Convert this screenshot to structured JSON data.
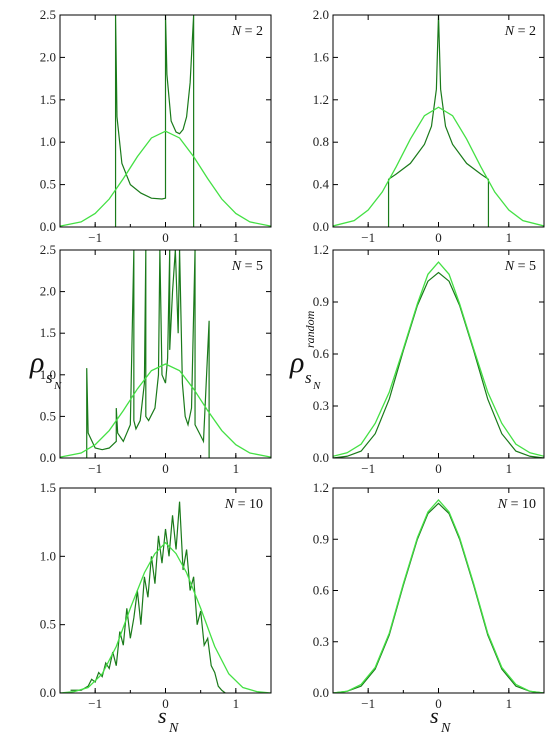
{
  "chart_data": [
    {
      "type": "line",
      "panel": "top-left",
      "annotation": "N = 2",
      "xlim": [
        -1.5,
        1.5
      ],
      "ylim": [
        0,
        2.5
      ],
      "xticks": [
        -1,
        0,
        1
      ],
      "yticks": [
        0.0,
        0.5,
        1.0,
        1.5,
        2.0,
        2.5
      ],
      "ytick_labels": [
        "0.0",
        "0.5",
        "1.0",
        "1.5",
        "2.0",
        "2.5"
      ],
      "series": [
        {
          "color": "#1a7a1a",
          "x": [
            -0.71,
            -0.71,
            -0.69,
            -0.62,
            -0.5,
            -0.35,
            -0.2,
            -0.05,
            0.0,
            0.0,
            0.02,
            0.08,
            0.15,
            0.2,
            0.25,
            0.3,
            0.35,
            0.4,
            0.4,
            0.4
          ],
          "y": [
            0.0,
            2.5,
            1.3,
            0.75,
            0.5,
            0.4,
            0.34,
            0.33,
            0.34,
            2.5,
            1.8,
            1.25,
            1.12,
            1.1,
            1.15,
            1.3,
            1.7,
            2.5,
            0.0,
            0.0
          ]
        },
        {
          "color": "#44e044",
          "x": [
            -1.5,
            -1.2,
            -1.0,
            -0.8,
            -0.6,
            -0.4,
            -0.2,
            0.0,
            0.2,
            0.4,
            0.6,
            0.8,
            1.0,
            1.2,
            1.5
          ],
          "y": [
            0.01,
            0.06,
            0.16,
            0.33,
            0.57,
            0.83,
            1.05,
            1.13,
            1.05,
            0.83,
            0.57,
            0.33,
            0.16,
            0.06,
            0.01
          ]
        }
      ]
    },
    {
      "type": "line",
      "panel": "top-right",
      "annotation": "N = 2",
      "xlim": [
        -1.5,
        1.5
      ],
      "ylim": [
        0,
        2.0
      ],
      "xticks": [
        -1,
        0,
        1
      ],
      "yticks": [
        0.0,
        0.4,
        0.8,
        1.2,
        1.6,
        2.0
      ],
      "ytick_labels": [
        "0.0",
        "0.4",
        "0.8",
        "1.2",
        "1.6",
        "2.0"
      ],
      "series": [
        {
          "color": "#1a7a1a",
          "x": [
            -0.71,
            -0.71,
            -0.6,
            -0.4,
            -0.2,
            -0.1,
            -0.03,
            0.0,
            0.03,
            0.1,
            0.2,
            0.4,
            0.6,
            0.71,
            0.71
          ],
          "y": [
            0.0,
            0.45,
            0.5,
            0.6,
            0.78,
            0.95,
            1.3,
            2.0,
            1.3,
            0.95,
            0.78,
            0.6,
            0.5,
            0.45,
            0.0
          ]
        },
        {
          "color": "#44e044",
          "x": [
            -1.5,
            -1.2,
            -1.0,
            -0.8,
            -0.6,
            -0.4,
            -0.2,
            0.0,
            0.2,
            0.4,
            0.6,
            0.8,
            1.0,
            1.2,
            1.5
          ],
          "y": [
            0.01,
            0.06,
            0.16,
            0.33,
            0.57,
            0.83,
            1.05,
            1.13,
            1.05,
            0.83,
            0.57,
            0.33,
            0.16,
            0.06,
            0.01
          ]
        }
      ]
    },
    {
      "type": "line",
      "panel": "middle-left",
      "annotation": "N = 5",
      "xlim": [
        -1.5,
        1.5
      ],
      "ylim": [
        0,
        2.5
      ],
      "xticks": [
        -1,
        0,
        1
      ],
      "yticks": [
        0.0,
        0.5,
        1.0,
        1.5,
        2.0,
        2.5
      ],
      "ytick_labels": [
        "0.0",
        "0.5",
        "1.0",
        "1.5",
        "2.0",
        "2.5"
      ],
      "series": [
        {
          "color": "#1a7a1a",
          "x": [
            -1.12,
            -1.12,
            -1.1,
            -1.0,
            -0.9,
            -0.8,
            -0.7,
            -0.7,
            -0.68,
            -0.6,
            -0.5,
            -0.45,
            -0.45,
            -0.42,
            -0.36,
            -0.3,
            -0.28,
            -0.28,
            -0.24,
            -0.15,
            -0.1,
            -0.08,
            -0.05,
            0.0,
            0.03,
            0.06,
            0.06,
            0.1,
            0.14,
            0.18,
            0.2,
            0.24,
            0.28,
            0.32,
            0.37,
            0.42,
            0.42,
            0.48,
            0.54,
            0.62,
            0.62,
            0.62
          ],
          "y": [
            0.0,
            1.08,
            0.3,
            0.12,
            0.1,
            0.12,
            0.2,
            0.6,
            0.3,
            0.2,
            0.4,
            2.5,
            0.45,
            0.35,
            0.45,
            0.9,
            2.5,
            0.5,
            0.45,
            0.6,
            1.0,
            2.5,
            1.0,
            0.9,
            1.2,
            2.5,
            1.3,
            2.0,
            2.5,
            1.5,
            2.5,
            0.9,
            0.5,
            0.4,
            0.6,
            2.5,
            0.4,
            0.3,
            0.2,
            1.65,
            0.0,
            0.0
          ]
        },
        {
          "color": "#44e044",
          "x": [
            -1.5,
            -1.2,
            -1.0,
            -0.8,
            -0.6,
            -0.4,
            -0.2,
            0.0,
            0.2,
            0.4,
            0.6,
            0.8,
            1.0,
            1.2,
            1.5
          ],
          "y": [
            0.01,
            0.06,
            0.16,
            0.33,
            0.57,
            0.83,
            1.05,
            1.13,
            1.05,
            0.83,
            0.57,
            0.33,
            0.16,
            0.06,
            0.01
          ]
        }
      ]
    },
    {
      "type": "line",
      "panel": "middle-right",
      "annotation": "N = 5",
      "xlim": [
        -1.5,
        1.5
      ],
      "ylim": [
        0,
        1.2
      ],
      "xticks": [
        -1,
        0,
        1
      ],
      "yticks": [
        0.0,
        0.3,
        0.6,
        0.9,
        1.2
      ],
      "ytick_labels": [
        "0.0",
        "0.3",
        "0.6",
        "0.9",
        "1.2"
      ],
      "series": [
        {
          "color": "#1a7a1a",
          "x": [
            -1.5,
            -1.3,
            -1.1,
            -0.9,
            -0.7,
            -0.5,
            -0.3,
            -0.15,
            0.0,
            0.15,
            0.3,
            0.5,
            0.7,
            0.9,
            1.1,
            1.3,
            1.5
          ],
          "y": [
            0.0,
            0.01,
            0.04,
            0.14,
            0.34,
            0.62,
            0.88,
            1.02,
            1.07,
            1.02,
            0.88,
            0.62,
            0.34,
            0.14,
            0.04,
            0.01,
            0.0
          ]
        },
        {
          "color": "#44e044",
          "x": [
            -1.5,
            -1.3,
            -1.1,
            -0.9,
            -0.7,
            -0.5,
            -0.3,
            -0.15,
            0.0,
            0.15,
            0.3,
            0.5,
            0.7,
            0.9,
            1.1,
            1.3,
            1.5
          ],
          "y": [
            0.01,
            0.03,
            0.08,
            0.2,
            0.38,
            0.63,
            0.89,
            1.06,
            1.13,
            1.06,
            0.89,
            0.63,
            0.38,
            0.2,
            0.08,
            0.03,
            0.01
          ]
        }
      ]
    },
    {
      "type": "line",
      "panel": "bottom-left",
      "annotation": "N = 10",
      "xlim": [
        -1.5,
        1.5
      ],
      "ylim": [
        0,
        1.5
      ],
      "xticks": [
        -1,
        0,
        1
      ],
      "yticks": [
        0.0,
        0.5,
        1.0,
        1.5
      ],
      "ytick_labels": [
        "0.0",
        "0.5",
        "1.0",
        "1.5"
      ],
      "series": [
        {
          "color": "#1a7a1a",
          "x": [
            -1.35,
            -1.2,
            -1.1,
            -1.05,
            -1.0,
            -0.95,
            -0.9,
            -0.85,
            -0.8,
            -0.75,
            -0.7,
            -0.65,
            -0.6,
            -0.55,
            -0.5,
            -0.45,
            -0.4,
            -0.35,
            -0.3,
            -0.25,
            -0.2,
            -0.15,
            -0.1,
            -0.05,
            0.0,
            0.05,
            0.1,
            0.15,
            0.2,
            0.25,
            0.3,
            0.35,
            0.4,
            0.45,
            0.5,
            0.55,
            0.6,
            0.65,
            0.7,
            0.75,
            0.8,
            0.85
          ],
          "y": [
            0.02,
            0.02,
            0.05,
            0.1,
            0.08,
            0.15,
            0.12,
            0.22,
            0.18,
            0.3,
            0.2,
            0.45,
            0.35,
            0.62,
            0.4,
            0.55,
            0.75,
            0.5,
            0.85,
            0.7,
            1.0,
            0.8,
            1.15,
            0.95,
            1.2,
            1.0,
            1.3,
            1.05,
            1.4,
            0.9,
            1.05,
            0.75,
            0.85,
            0.5,
            0.6,
            0.35,
            0.4,
            0.2,
            0.15,
            0.05,
            0.02,
            0.0
          ]
        },
        {
          "color": "#44e044",
          "x": [
            -1.5,
            -1.3,
            -1.1,
            -0.9,
            -0.7,
            -0.5,
            -0.3,
            -0.15,
            0.0,
            0.15,
            0.3,
            0.5,
            0.7,
            0.9,
            1.1,
            1.3,
            1.5
          ],
          "y": [
            0.0,
            0.01,
            0.04,
            0.14,
            0.34,
            0.62,
            0.88,
            1.02,
            1.1,
            1.02,
            0.88,
            0.62,
            0.34,
            0.14,
            0.04,
            0.01,
            0.0
          ]
        }
      ]
    },
    {
      "type": "line",
      "panel": "bottom-right",
      "annotation": "N = 10",
      "xlim": [
        -1.5,
        1.5
      ],
      "ylim": [
        0,
        1.2
      ],
      "xticks": [
        -1,
        0,
        1
      ],
      "yticks": [
        0.0,
        0.3,
        0.6,
        0.9,
        1.2
      ],
      "ytick_labels": [
        "0.0",
        "0.3",
        "0.6",
        "0.9",
        "1.2"
      ],
      "series": [
        {
          "color": "#1a7a1a",
          "x": [
            -1.5,
            -1.3,
            -1.1,
            -0.9,
            -0.7,
            -0.5,
            -0.3,
            -0.15,
            0.0,
            0.15,
            0.3,
            0.5,
            0.7,
            0.9,
            1.1,
            1.3,
            1.5
          ],
          "y": [
            0.0,
            0.01,
            0.04,
            0.14,
            0.34,
            0.63,
            0.9,
            1.05,
            1.11,
            1.05,
            0.9,
            0.63,
            0.34,
            0.14,
            0.04,
            0.01,
            0.0
          ]
        },
        {
          "color": "#44e044",
          "x": [
            -1.5,
            -1.3,
            -1.1,
            -0.9,
            -0.7,
            -0.5,
            -0.3,
            -0.15,
            0.0,
            0.15,
            0.3,
            0.5,
            0.7,
            0.9,
            1.1,
            1.3,
            1.5
          ],
          "y": [
            0.0,
            0.01,
            0.05,
            0.15,
            0.35,
            0.64,
            0.91,
            1.06,
            1.13,
            1.06,
            0.91,
            0.64,
            0.35,
            0.15,
            0.05,
            0.01,
            0.0
          ]
        }
      ]
    }
  ],
  "axis_labels": {
    "left_y": "ρ",
    "left_y_sub": "s",
    "left_y_subsub": "N",
    "right_y": "ρ",
    "right_y_sub": "s",
    "right_y_subsub": "N",
    "right_y_sup": "random",
    "x_left": "s",
    "x_left_sub": "N",
    "x_right": "s",
    "x_right_sub": "N"
  }
}
